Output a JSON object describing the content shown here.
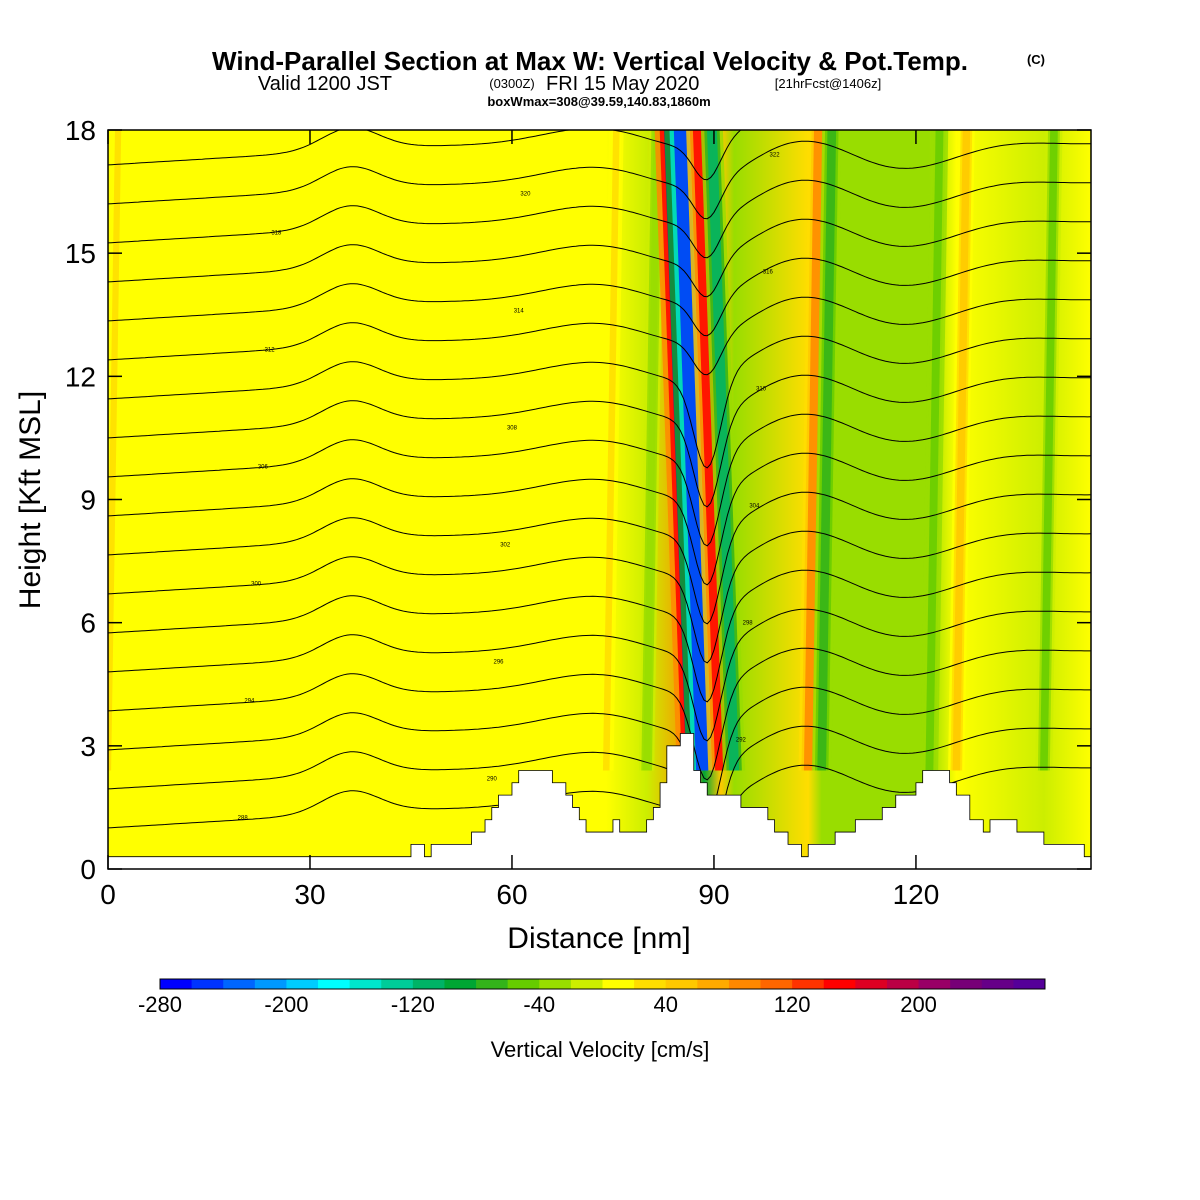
{
  "header": {
    "title": "Wind-Parallel Section at Max W: Vertical Velocity & Pot.Temp.",
    "title_mark": "(C)",
    "valid_main": "Valid 1200 JST",
    "valid_utc": "(0300Z)",
    "valid_date": "FRI 15 May 2020",
    "forecast": "[21hrFcst@1406z]",
    "box_info": "boxWmax=308@39.59,140.83,1860m"
  },
  "chart_data": {
    "type": "heatmap",
    "xlabel": "Distance [nm]",
    "ylabel": "Height [Kft MSL]",
    "xlim": [
      0,
      146
    ],
    "ylim": [
      0,
      18
    ],
    "x_ticks": [
      "0",
      "30",
      "60",
      "90",
      "120"
    ],
    "y_ticks": [
      "0",
      "3",
      "6",
      "9",
      "12",
      "15",
      "18"
    ],
    "colorbar": {
      "label": "Vertical Velocity [cm/s]",
      "range": [
        -280,
        280
      ],
      "tick_labels": [
        "-280",
        "-200",
        "-120",
        "-40",
        "40",
        "120",
        "200"
      ],
      "colors": [
        "#0000ff",
        "#0033ff",
        "#0066ff",
        "#0099ff",
        "#00ccff",
        "#00ffff",
        "#00e6cc",
        "#00cc99",
        "#00b366",
        "#00a633",
        "#33b31a",
        "#66cc00",
        "#99dd00",
        "#ccee00",
        "#ffff00",
        "#ffdd00",
        "#ffc800",
        "#ffaa00",
        "#ff8800",
        "#ff6600",
        "#ff3300",
        "#ff0000",
        "#dd0022",
        "#bb0044",
        "#990066",
        "#770077",
        "#660088",
        "#550099"
      ]
    },
    "vertical_velocity_bands": [
      {
        "x": 0,
        "w": 20,
        "label": "mean downward, weak"
      },
      {
        "x": 74,
        "w": 28,
        "label": "updraft"
      },
      {
        "x": 80,
        "w": -35,
        "label": "downdraft"
      },
      {
        "x": 87,
        "w": 240,
        "label": "strong updraft core"
      },
      {
        "x": 88.5,
        "w": -250,
        "label": "strong downdraft core"
      },
      {
        "x": 91,
        "w": 140,
        "label": "updraft"
      },
      {
        "x": 93,
        "w": -110,
        "label": "downdraft"
      },
      {
        "x": 104,
        "w": 80,
        "label": "updraft"
      },
      {
        "x": 106,
        "w": -80,
        "label": "downdraft"
      },
      {
        "x": 122,
        "w": -60,
        "label": "downdraft"
      },
      {
        "x": 126,
        "w": 50,
        "label": "updraft"
      },
      {
        "x": 139,
        "w": -55,
        "label": "downdraft"
      }
    ],
    "terrain": {
      "x": [
        0,
        44,
        45,
        47,
        48,
        49,
        51,
        53,
        54,
        55,
        56,
        57,
        58,
        59,
        60,
        61,
        62,
        63,
        64,
        65,
        66,
        67,
        68,
        69,
        70,
        71,
        73,
        75,
        76,
        78,
        80,
        81,
        82,
        83,
        84,
        85,
        86,
        87,
        88,
        89,
        90,
        92,
        94,
        96,
        98,
        99,
        100,
        101,
        102,
        103,
        104,
        106,
        108,
        110,
        111,
        112,
        113,
        115,
        117,
        119,
        120,
        121,
        123,
        125,
        126,
        128,
        129,
        130,
        131,
        133,
        135,
        137,
        139,
        140,
        141,
        144,
        145,
        146
      ],
      "h": [
        0.3,
        0.3,
        0.6,
        0.3,
        0.6,
        0.6,
        0.6,
        0.6,
        0.9,
        0.9,
        1.2,
        1.5,
        1.8,
        1.8,
        2.1,
        2.4,
        2.4,
        2.4,
        2.4,
        2.4,
        2.1,
        2.1,
        1.8,
        1.5,
        1.2,
        0.9,
        0.9,
        1.2,
        0.9,
        0.9,
        1.2,
        1.5,
        2.1,
        3.0,
        3.0,
        3.3,
        3.3,
        2.4,
        2.1,
        1.8,
        1.8,
        1.8,
        1.5,
        1.5,
        1.2,
        0.9,
        0.9,
        0.6,
        0.6,
        0.3,
        0.6,
        0.6,
        0.9,
        0.9,
        1.2,
        1.2,
        1.2,
        1.5,
        1.8,
        1.8,
        2.1,
        2.4,
        2.4,
        2.1,
        1.8,
        1.2,
        1.2,
        0.9,
        1.2,
        1.2,
        0.9,
        0.9,
        0.6,
        0.6,
        0.6,
        0.6,
        0.3,
        0.3
      ]
    },
    "theta_contours": {
      "levels": [
        288,
        290,
        292,
        294,
        296,
        298,
        300,
        302,
        304,
        306,
        308,
        310,
        312,
        314,
        316,
        318,
        320,
        322
      ],
      "interval": 2
    }
  }
}
